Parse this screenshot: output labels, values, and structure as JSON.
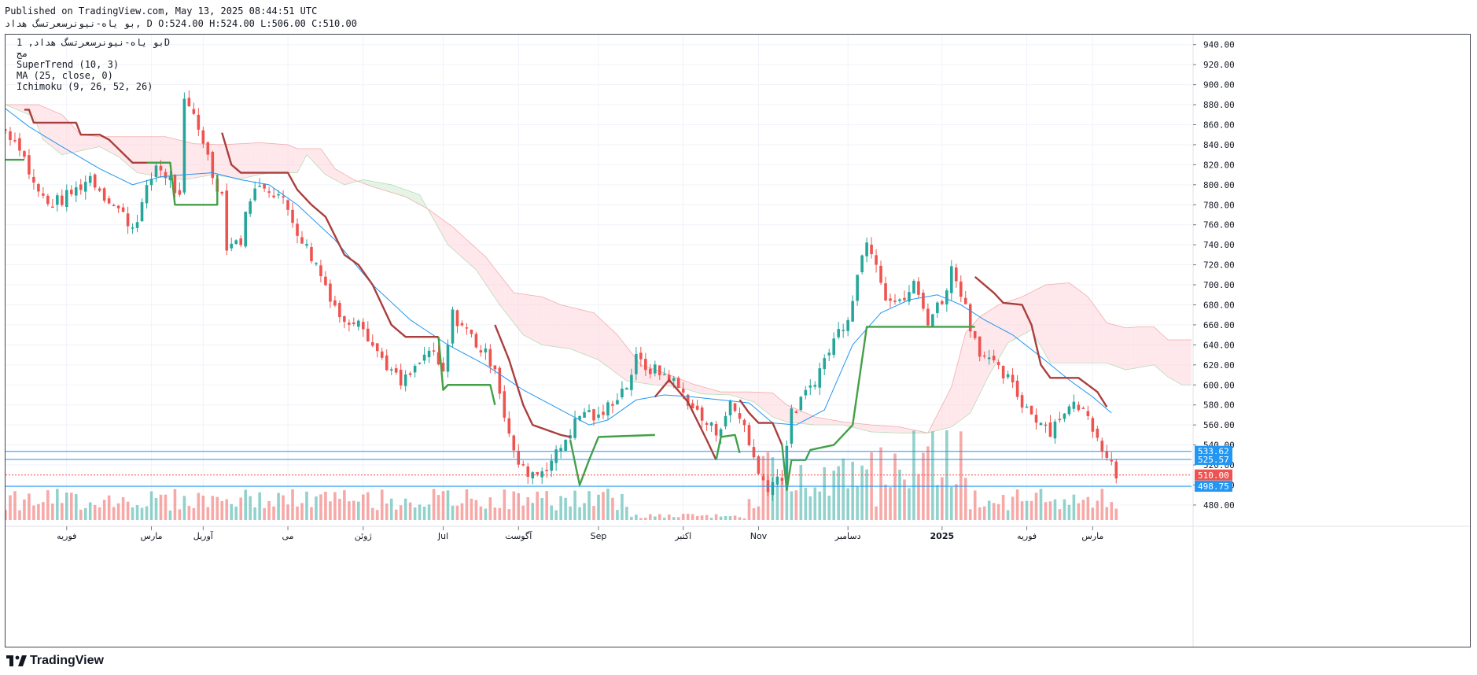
{
  "header": {
    "published": "Published on TradingView.com, May 13, 2025 08:44:51 UTC",
    "ohlc_line": "بو یاه-نیونرسعرتسگ هداد, D O:524.00 H:524.00 L:506.00 C:510.00"
  },
  "legend": {
    "symbol_line": "بو یاه-نیونرسعرتسگ هداد, 1D",
    "exchange": "مج",
    "supertrend": "SuperTrend (10, 3)",
    "ma": "MA (25, close, 0)",
    "ichimoku": "Ichimoku (9, 26, 52, 26)"
  },
  "footer": {
    "brand": "TradingView"
  },
  "colors": {
    "up": "#26a69a",
    "down": "#ef5350",
    "ma": "#2196f3",
    "st_down": "#a93f3c",
    "st_up": "#43a047",
    "cloud_bear": "#ffcdd2",
    "cloud_bull": "#c8e6c9"
  },
  "chart_data": {
    "type": "candlestick",
    "symbol": "بو یاه-نیونرسعرتسگ هداد",
    "interval": "1D",
    "ylim": [
      465,
      950
    ],
    "y_ticks": [
      480,
      500,
      520,
      540,
      560,
      580,
      600,
      620,
      640,
      660,
      680,
      700,
      720,
      740,
      760,
      780,
      800,
      820,
      840,
      860,
      880,
      900,
      920,
      940
    ],
    "y_tick_labels": [
      "480.00",
      "500.00",
      "520.00",
      "540.00",
      "560.00",
      "580.00",
      "600.00",
      "620.00",
      "640.00",
      "660.00",
      "680.00",
      "700.00",
      "720.00",
      "740.00",
      "760.00",
      "780.00",
      "800.00",
      "820.00",
      "840.00",
      "860.00",
      "880.00",
      "900.00",
      "920.00",
      "940.00"
    ],
    "x_range": [
      0,
      252
    ],
    "x_labels": [
      {
        "label": "فوریه",
        "x": 13,
        "bold": false
      },
      {
        "label": "مارس",
        "x": 31,
        "bold": false
      },
      {
        "label": "آوریل",
        "x": 42,
        "bold": false
      },
      {
        "label": "می",
        "x": 60,
        "bold": false
      },
      {
        "label": "ژوئن",
        "x": 76,
        "bold": false
      },
      {
        "label": "Jul",
        "x": 93,
        "bold": false
      },
      {
        "label": "آگوست",
        "x": 109,
        "bold": false
      },
      {
        "label": "Sep",
        "x": 126,
        "bold": false
      },
      {
        "label": "اکتبر",
        "x": 144,
        "bold": false
      },
      {
        "label": "Nov",
        "x": 160,
        "bold": false
      },
      {
        "label": "دسامبر",
        "x": 179,
        "bold": false
      },
      {
        "label": "2025",
        "x": 199,
        "bold": true
      },
      {
        "label": "فوریه",
        "x": 217,
        "bold": false
      },
      {
        "label": "مارس",
        "x": 231,
        "bold": false
      }
    ],
    "price_lines": [
      {
        "value": 533.62,
        "label": "533.62",
        "color": "#2196f3",
        "style": "solid"
      },
      {
        "value": 525.57,
        "label": "525.57",
        "color": "#2196f3",
        "style": "solid"
      },
      {
        "value": 510.0,
        "label": "510.00",
        "color": "#ef5350",
        "style": "dotted"
      },
      {
        "value": 498.75,
        "label": "498.75",
        "color": "#2196f3",
        "style": "solid"
      }
    ],
    "price_anchors": [
      [
        0,
        855
      ],
      [
        3,
        840
      ],
      [
        6,
        800
      ],
      [
        9,
        780
      ],
      [
        12,
        785
      ],
      [
        15,
        795
      ],
      [
        18,
        808
      ],
      [
        21,
        790
      ],
      [
        24,
        775
      ],
      [
        27,
        758
      ],
      [
        29,
        780
      ],
      [
        32,
        820
      ],
      [
        35,
        805
      ],
      [
        37,
        785
      ],
      [
        38,
        880
      ],
      [
        40,
        870
      ],
      [
        42,
        845
      ],
      [
        44,
        810
      ],
      [
        46,
        790
      ],
      [
        47,
        740
      ],
      [
        50,
        745
      ],
      [
        52,
        790
      ],
      [
        55,
        800
      ],
      [
        58,
        790
      ],
      [
        60,
        775
      ],
      [
        63,
        745
      ],
      [
        66,
        720
      ],
      [
        69,
        690
      ],
      [
        72,
        660
      ],
      [
        75,
        670
      ],
      [
        78,
        640
      ],
      [
        81,
        620
      ],
      [
        84,
        600
      ],
      [
        87,
        615
      ],
      [
        90,
        635
      ],
      [
        93,
        610
      ],
      [
        95,
        670
      ],
      [
        98,
        655
      ],
      [
        101,
        635
      ],
      [
        104,
        620
      ],
      [
        106,
        570
      ],
      [
        108,
        530
      ],
      [
        110,
        515
      ],
      [
        113,
        512
      ],
      [
        115,
        520
      ],
      [
        117,
        530
      ],
      [
        120,
        555
      ],
      [
        123,
        575
      ],
      [
        126,
        565
      ],
      [
        129,
        585
      ],
      [
        132,
        600
      ],
      [
        134,
        625
      ],
      [
        136,
        618
      ],
      [
        141,
        608
      ],
      [
        145,
        585
      ],
      [
        148,
        565
      ],
      [
        151,
        553
      ],
      [
        154,
        580
      ],
      [
        157,
        560
      ],
      [
        160,
        510
      ],
      [
        162,
        500
      ],
      [
        165,
        510
      ],
      [
        167,
        570
      ],
      [
        170,
        590
      ],
      [
        173,
        615
      ],
      [
        176,
        645
      ],
      [
        179,
        670
      ],
      [
        181,
        710
      ],
      [
        183,
        748
      ],
      [
        185,
        725
      ],
      [
        187,
        690
      ],
      [
        190,
        680
      ],
      [
        193,
        700
      ],
      [
        196,
        665
      ],
      [
        199,
        685
      ],
      [
        201,
        715
      ],
      [
        203,
        695
      ],
      [
        205,
        660
      ],
      [
        207,
        635
      ],
      [
        210,
        618
      ],
      [
        213,
        605
      ],
      [
        216,
        582
      ],
      [
        219,
        568
      ],
      [
        222,
        555
      ],
      [
        225,
        575
      ],
      [
        228,
        580
      ],
      [
        231,
        560
      ],
      [
        233,
        540
      ],
      [
        235,
        522
      ],
      [
        236,
        510
      ]
    ],
    "ma_anchors": [
      [
        0,
        876
      ],
      [
        5,
        858
      ],
      [
        12,
        838
      ],
      [
        20,
        816
      ],
      [
        27,
        800
      ],
      [
        33,
        808
      ],
      [
        38,
        810
      ],
      [
        44,
        812
      ],
      [
        50,
        805
      ],
      [
        56,
        800
      ],
      [
        62,
        780
      ],
      [
        70,
        745
      ],
      [
        78,
        700
      ],
      [
        86,
        665
      ],
      [
        94,
        640
      ],
      [
        102,
        620
      ],
      [
        110,
        595
      ],
      [
        118,
        575
      ],
      [
        124,
        560
      ],
      [
        128,
        565
      ],
      [
        134,
        585
      ],
      [
        140,
        590
      ],
      [
        146,
        588
      ],
      [
        152,
        585
      ],
      [
        158,
        582
      ],
      [
        163,
        562
      ],
      [
        168,
        560
      ],
      [
        174,
        575
      ],
      [
        180,
        640
      ],
      [
        186,
        672
      ],
      [
        192,
        685
      ],
      [
        198,
        690
      ],
      [
        203,
        680
      ],
      [
        208,
        665
      ],
      [
        214,
        650
      ],
      [
        220,
        628
      ],
      [
        226,
        605
      ],
      [
        231,
        588
      ],
      [
        235,
        572
      ]
    ],
    "supertrend": [
      {
        "trend": "up",
        "points": [
          [
            0,
            825
          ],
          [
            4,
            825
          ]
        ]
      },
      {
        "trend": "down",
        "points": [
          [
            4,
            875
          ],
          [
            5,
            875
          ],
          [
            6,
            862
          ],
          [
            15,
            862
          ],
          [
            16,
            850
          ],
          [
            20,
            850
          ],
          [
            22,
            845
          ],
          [
            27,
            822
          ],
          [
            35,
            822
          ]
        ]
      },
      {
        "trend": "up",
        "points": [
          [
            30,
            822
          ],
          [
            35,
            822
          ],
          [
            36,
            780
          ],
          [
            45,
            780
          ],
          [
            45,
            810
          ]
        ]
      },
      {
        "trend": "down",
        "points": [
          [
            46,
            852
          ],
          [
            48,
            820
          ],
          [
            50,
            812
          ],
          [
            60,
            812
          ],
          [
            62,
            795
          ],
          [
            65,
            780
          ],
          [
            68,
            768
          ],
          [
            72,
            730
          ],
          [
            75,
            720
          ],
          [
            78,
            700
          ],
          [
            80,
            680
          ],
          [
            82,
            660
          ],
          [
            85,
            648
          ],
          [
            92,
            648
          ]
        ]
      },
      {
        "trend": "up",
        "points": [
          [
            92,
            648
          ],
          [
            93,
            595
          ],
          [
            94,
            600
          ],
          [
            103,
            600
          ],
          [
            104,
            580
          ]
        ]
      },
      {
        "trend": "down",
        "points": [
          [
            104,
            660
          ],
          [
            107,
            625
          ],
          [
            110,
            580
          ],
          [
            112,
            560
          ],
          [
            115,
            555
          ],
          [
            118,
            550
          ],
          [
            120,
            548
          ]
        ]
      },
      {
        "trend": "up",
        "points": [
          [
            120,
            545
          ],
          [
            122,
            500
          ],
          [
            124,
            525
          ],
          [
            126,
            548
          ],
          [
            138,
            550
          ]
        ]
      },
      {
        "trend": "down",
        "points": [
          [
            138,
            588
          ],
          [
            141,
            605
          ],
          [
            145,
            583
          ],
          [
            149,
            545
          ],
          [
            151,
            525
          ]
        ]
      },
      {
        "trend": "up",
        "points": [
          [
            151,
            525
          ],
          [
            152,
            548
          ],
          [
            155,
            550
          ],
          [
            156,
            532
          ]
        ]
      },
      {
        "trend": "down",
        "points": [
          [
            156,
            585
          ],
          [
            158,
            572
          ],
          [
            160,
            562
          ],
          [
            163,
            562
          ],
          [
            165,
            540
          ]
        ]
      },
      {
        "trend": "up",
        "points": [
          [
            165,
            540
          ],
          [
            166,
            495
          ],
          [
            167,
            525
          ],
          [
            170,
            525
          ],
          [
            171,
            535
          ],
          [
            176,
            540
          ],
          [
            180,
            560
          ],
          [
            183,
            658
          ],
          [
            206,
            658
          ]
        ]
      },
      {
        "trend": "down",
        "points": [
          [
            206,
            708
          ],
          [
            208,
            700
          ],
          [
            210,
            692
          ],
          [
            212,
            682
          ],
          [
            216,
            680
          ],
          [
            218,
            660
          ],
          [
            220,
            620
          ],
          [
            222,
            607
          ],
          [
            228,
            607
          ],
          [
            232,
            593
          ],
          [
            234,
            578
          ]
        ]
      }
    ],
    "cloud": {
      "top_anchors": [
        [
          0,
          880
        ],
        [
          7,
          880
        ],
        [
          12,
          870
        ],
        [
          16,
          850
        ],
        [
          20,
          848
        ],
        [
          24,
          848
        ],
        [
          28,
          848
        ],
        [
          34,
          848
        ],
        [
          40,
          841
        ],
        [
          46,
          840
        ],
        [
          54,
          842
        ],
        [
          60,
          840
        ],
        [
          62,
          836
        ],
        [
          67,
          836
        ],
        [
          70,
          816
        ],
        [
          74,
          805
        ],
        [
          78,
          798
        ],
        [
          85,
          788
        ],
        [
          90,
          775
        ],
        [
          95,
          758
        ],
        [
          102,
          728
        ],
        [
          108,
          692
        ],
        [
          114,
          688
        ],
        [
          118,
          680
        ],
        [
          125,
          672
        ],
        [
          130,
          650
        ],
        [
          135,
          620
        ],
        [
          140,
          612
        ],
        [
          146,
          601
        ],
        [
          152,
          593
        ],
        [
          158,
          593
        ],
        [
          163,
          592
        ],
        [
          166,
          580
        ],
        [
          172,
          568
        ],
        [
          178,
          563
        ],
        [
          184,
          560
        ],
        [
          190,
          558
        ],
        [
          196,
          552
        ],
        [
          201,
          598
        ],
        [
          204,
          652
        ],
        [
          207,
          668
        ],
        [
          211,
          680
        ],
        [
          216,
          688
        ],
        [
          221,
          700
        ],
        [
          226,
          702
        ],
        [
          230,
          688
        ],
        [
          234,
          662
        ],
        [
          238,
          657
        ],
        [
          241,
          658
        ],
        [
          244,
          658
        ],
        [
          247,
          645
        ],
        [
          252,
          645
        ]
      ],
      "bottom_anchors": [
        [
          0,
          880
        ],
        [
          6,
          868
        ],
        [
          8,
          845
        ],
        [
          12,
          830
        ],
        [
          20,
          838
        ],
        [
          24,
          828
        ],
        [
          28,
          812
        ],
        [
          34,
          807
        ],
        [
          38,
          805
        ],
        [
          44,
          810
        ],
        [
          50,
          806
        ],
        [
          56,
          812
        ],
        [
          62,
          812
        ],
        [
          64,
          830
        ],
        [
          68,
          810
        ],
        [
          72,
          800
        ],
        [
          76,
          805
        ],
        [
          82,
          800
        ],
        [
          88,
          790
        ],
        [
          94,
          740
        ],
        [
          100,
          715
        ],
        [
          105,
          680
        ],
        [
          110,
          650
        ],
        [
          114,
          640
        ],
        [
          120,
          636
        ],
        [
          126,
          625
        ],
        [
          132,
          604
        ],
        [
          138,
          600
        ],
        [
          143,
          598
        ],
        [
          148,
          591
        ],
        [
          154,
          590
        ],
        [
          159,
          583
        ],
        [
          163,
          568
        ],
        [
          166,
          563
        ],
        [
          172,
          560
        ],
        [
          178,
          560
        ],
        [
          184,
          553
        ],
        [
          190,
          552
        ],
        [
          196,
          552
        ],
        [
          201,
          558
        ],
        [
          205,
          572
        ],
        [
          209,
          610
        ],
        [
          213,
          642
        ],
        [
          218,
          655
        ],
        [
          222,
          622
        ],
        [
          228,
          622
        ],
        [
          234,
          622
        ],
        [
          238,
          615
        ],
        [
          244,
          620
        ],
        [
          247,
          608
        ],
        [
          250,
          600
        ],
        [
          252,
          600
        ]
      ]
    },
    "volume": {
      "show_last_label": false
    }
  }
}
